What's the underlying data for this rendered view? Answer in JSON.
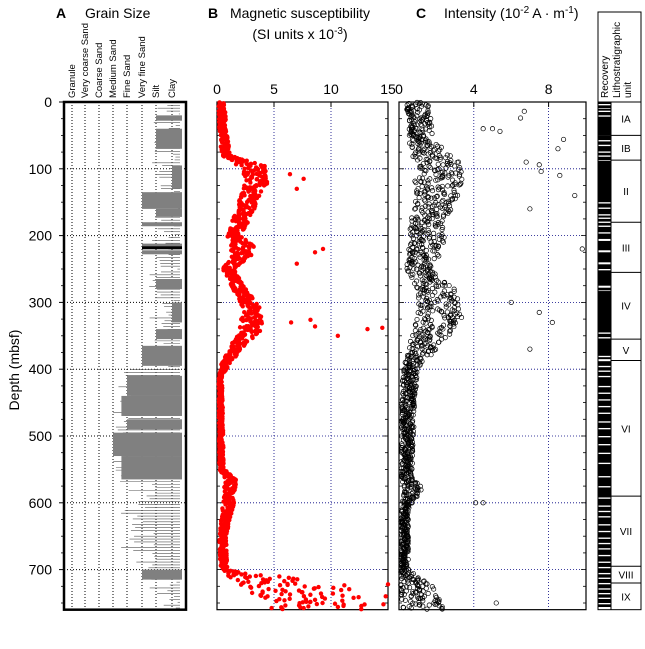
{
  "chart_data": [
    {
      "id": "A",
      "type": "bar",
      "title": "Grain Size",
      "panel_letter": "A",
      "ylabel": "Depth (mbsf)",
      "ylim": [
        0,
        760
      ],
      "yticks": [
        "0",
        "100",
        "200",
        "300",
        "400",
        "500",
        "600",
        "700"
      ],
      "grain_classes": [
        "Granule",
        "Very coarse Sand",
        "Coarse Sand",
        "Medium Sand",
        "Fine Sand",
        "Very fine Sand",
        "Silt",
        "Clay"
      ],
      "intervals_coarsest_class_index": [
        {
          "top": 20,
          "bottom": 28,
          "coarsest": 6
        },
        {
          "top": 40,
          "bottom": 70,
          "coarsest": 6
        },
        {
          "top": 95,
          "bottom": 130,
          "coarsest": 7
        },
        {
          "top": 135,
          "bottom": 160,
          "coarsest": 5
        },
        {
          "top": 160,
          "bottom": 172,
          "coarsest": 6
        },
        {
          "top": 180,
          "bottom": 186,
          "coarsest": 5
        },
        {
          "top": 212,
          "bottom": 220,
          "coarsest": 5
        },
        {
          "top": 222,
          "bottom": 228,
          "coarsest": 5
        },
        {
          "top": 265,
          "bottom": 280,
          "coarsest": 6
        },
        {
          "top": 300,
          "bottom": 330,
          "coarsest": 7
        },
        {
          "top": 340,
          "bottom": 355,
          "coarsest": 6
        },
        {
          "top": 365,
          "bottom": 395,
          "coarsest": 5
        },
        {
          "top": 410,
          "bottom": 440,
          "coarsest": 4
        },
        {
          "top": 440,
          "bottom": 470,
          "coarsest": 3.6
        },
        {
          "top": 475,
          "bottom": 490,
          "coarsest": 4
        },
        {
          "top": 495,
          "bottom": 530,
          "coarsest": 3
        },
        {
          "top": 530,
          "bottom": 565,
          "coarsest": 3.6
        },
        {
          "top": 700,
          "bottom": 715,
          "coarsest": 5
        }
      ]
    },
    {
      "id": "B",
      "type": "scatter",
      "panel_letter": "B",
      "title": "Magnetic susceptibility",
      "subtitle": "(SI units x 10",
      "subtitle_exp": "-3",
      "subtitle_end": ")",
      "xlim": [
        0,
        15
      ],
      "xticks": [
        "0",
        "5",
        "10",
        "15"
      ],
      "ylim": [
        0,
        760
      ],
      "color": "#ff0000",
      "profile": [
        {
          "depth": 0,
          "value": 0.4,
          "spread": 0.3
        },
        {
          "depth": 40,
          "value": 0.5,
          "spread": 0.3
        },
        {
          "depth": 80,
          "value": 0.8,
          "spread": 0.4
        },
        {
          "depth": 95,
          "value": 3.0,
          "spread": 1.2
        },
        {
          "depth": 120,
          "value": 3.5,
          "spread": 1.0
        },
        {
          "depth": 160,
          "value": 2.5,
          "spread": 0.8
        },
        {
          "depth": 200,
          "value": 1.5,
          "spread": 0.6
        },
        {
          "depth": 220,
          "value": 2.5,
          "spread": 1.2
        },
        {
          "depth": 250,
          "value": 1.0,
          "spread": 0.5
        },
        {
          "depth": 280,
          "value": 2.0,
          "spread": 0.6
        },
        {
          "depth": 310,
          "value": 3.0,
          "spread": 0.8
        },
        {
          "depth": 340,
          "value": 3.0,
          "spread": 1.0
        },
        {
          "depth": 360,
          "value": 2.0,
          "spread": 0.7
        },
        {
          "depth": 390,
          "value": 0.8,
          "spread": 0.4
        },
        {
          "depth": 410,
          "value": 0.3,
          "spread": 0.15
        },
        {
          "depth": 550,
          "value": 0.4,
          "spread": 0.2
        },
        {
          "depth": 565,
          "value": 1.2,
          "spread": 0.5
        },
        {
          "depth": 600,
          "value": 1.0,
          "spread": 0.5
        },
        {
          "depth": 650,
          "value": 0.5,
          "spread": 0.3
        },
        {
          "depth": 700,
          "value": 0.6,
          "spread": 0.3
        },
        {
          "depth": 725,
          "value": 7.0,
          "spread": 5.0
        },
        {
          "depth": 760,
          "value": 8.0,
          "spread": 5.5
        }
      ],
      "outliers": [
        {
          "x": 14.5,
          "y": 338
        },
        {
          "x": 13.2,
          "y": 340
        },
        {
          "x": 10.6,
          "y": 350
        },
        {
          "x": 8.6,
          "y": 336
        },
        {
          "x": 8.2,
          "y": 326
        },
        {
          "x": 6.5,
          "y": 330
        },
        {
          "x": 7.6,
          "y": 115
        },
        {
          "x": 7.0,
          "y": 130
        },
        {
          "x": 6.4,
          "y": 108
        },
        {
          "x": 9.3,
          "y": 220
        },
        {
          "x": 8.6,
          "y": 225
        },
        {
          "x": 7.0,
          "y": 242
        },
        {
          "x": 15.0,
          "y": 722
        },
        {
          "x": 14.8,
          "y": 740
        },
        {
          "x": 14.6,
          "y": 752
        }
      ]
    },
    {
      "id": "C",
      "type": "scatter",
      "panel_letter": "C",
      "title": "Intensity (10",
      "title_exp": "-2",
      "title_mid": " A · m",
      "title_exp2": "-1",
      "title_end": ")",
      "xlim": [
        0,
        10
      ],
      "xticks": [
        "0",
        "4",
        "8"
      ],
      "ylim": [
        0,
        760
      ],
      "profile": [
        {
          "depth": 0,
          "value": 1.0,
          "spread": 0.6
        },
        {
          "depth": 60,
          "value": 1.2,
          "spread": 0.7
        },
        {
          "depth": 95,
          "value": 2.2,
          "spread": 1.3
        },
        {
          "depth": 140,
          "value": 2.0,
          "spread": 1.2
        },
        {
          "depth": 180,
          "value": 1.5,
          "spread": 0.9
        },
        {
          "depth": 220,
          "value": 1.5,
          "spread": 1.0
        },
        {
          "depth": 250,
          "value": 1.0,
          "spread": 0.6
        },
        {
          "depth": 280,
          "value": 2.0,
          "spread": 1.0
        },
        {
          "depth": 320,
          "value": 2.2,
          "spread": 1.2
        },
        {
          "depth": 360,
          "value": 1.5,
          "spread": 0.9
        },
        {
          "depth": 400,
          "value": 0.6,
          "spread": 0.4
        },
        {
          "depth": 450,
          "value": 0.5,
          "spread": 0.35
        },
        {
          "depth": 560,
          "value": 0.4,
          "spread": 0.3
        },
        {
          "depth": 580,
          "value": 0.8,
          "spread": 0.5
        },
        {
          "depth": 610,
          "value": 0.3,
          "spread": 0.2
        },
        {
          "depth": 700,
          "value": 0.3,
          "spread": 0.2
        },
        {
          "depth": 730,
          "value": 1.0,
          "spread": 1.0
        },
        {
          "depth": 760,
          "value": 1.2,
          "spread": 1.2
        }
      ],
      "outliers": [
        {
          "x": 6.5,
          "y": 24
        },
        {
          "x": 6.7,
          "y": 14
        },
        {
          "x": 5.4,
          "y": 44
        },
        {
          "x": 5.0,
          "y": 40
        },
        {
          "x": 4.5,
          "y": 40
        },
        {
          "x": 8.5,
          "y": 70
        },
        {
          "x": 8.8,
          "y": 56
        },
        {
          "x": 7.5,
          "y": 94
        },
        {
          "x": 8.6,
          "y": 110
        },
        {
          "x": 9.4,
          "y": 140
        },
        {
          "x": 7.6,
          "y": 104
        },
        {
          "x": 6.8,
          "y": 90
        },
        {
          "x": 7.0,
          "y": 160
        },
        {
          "x": 9.8,
          "y": 220
        },
        {
          "x": 7.5,
          "y": 315
        },
        {
          "x": 8.2,
          "y": 330
        },
        {
          "x": 7.0,
          "y": 370
        },
        {
          "x": 6.0,
          "y": 300
        },
        {
          "x": 4.5,
          "y": 600
        },
        {
          "x": 4.1,
          "y": 600
        },
        {
          "x": 5.2,
          "y": 750
        }
      ]
    }
  ],
  "lithology": {
    "recovery_label": "Recovery",
    "unit_label": "Lithostratigraphic unit",
    "units": [
      {
        "name": "IA",
        "top": 0,
        "bottom": 50
      },
      {
        "name": "IB",
        "top": 50,
        "bottom": 87
      },
      {
        "name": "II",
        "top": 87,
        "bottom": 180
      },
      {
        "name": "III",
        "top": 180,
        "bottom": 255
      },
      {
        "name": "IV",
        "top": 255,
        "bottom": 355
      },
      {
        "name": "V",
        "top": 355,
        "bottom": 387
      },
      {
        "name": "VI",
        "top": 387,
        "bottom": 590
      },
      {
        "name": "VII",
        "top": 590,
        "bottom": 695
      },
      {
        "name": "VIII",
        "top": 695,
        "bottom": 720
      },
      {
        "name": "IX",
        "top": 720,
        "bottom": 760
      }
    ],
    "recovery_intervals": [
      [
        0,
        3
      ],
      [
        5,
        9
      ],
      [
        10,
        13
      ],
      [
        15,
        20
      ],
      [
        22,
        50
      ],
      [
        50,
        57
      ],
      [
        59,
        64
      ],
      [
        66,
        74
      ],
      [
        76,
        80
      ],
      [
        82,
        87
      ],
      [
        88,
        150
      ],
      [
        152,
        158
      ],
      [
        160,
        168
      ],
      [
        170,
        173
      ],
      [
        175,
        179
      ],
      [
        181,
        185
      ],
      [
        187,
        195
      ],
      [
        197,
        205
      ],
      [
        208,
        222
      ],
      [
        225,
        240
      ],
      [
        243,
        250
      ],
      [
        252,
        275
      ],
      [
        278,
        282
      ],
      [
        283,
        345
      ],
      [
        347,
        352
      ],
      [
        354,
        380
      ],
      [
        382,
        385
      ],
      [
        388,
        395
      ],
      [
        397,
        402
      ],
      [
        404,
        410
      ],
      [
        412,
        425
      ],
      [
        427,
        435
      ],
      [
        437,
        445
      ],
      [
        447,
        455
      ],
      [
        457,
        465
      ],
      [
        467,
        478
      ],
      [
        480,
        488
      ],
      [
        490,
        500
      ],
      [
        502,
        512
      ],
      [
        514,
        525
      ],
      [
        527,
        540
      ],
      [
        542,
        560
      ],
      [
        562,
        575
      ],
      [
        577,
        592
      ],
      [
        594,
        604
      ],
      [
        606,
        612
      ],
      [
        614,
        620
      ],
      [
        622,
        632
      ],
      [
        634,
        642
      ],
      [
        644,
        652
      ],
      [
        654,
        660
      ],
      [
        662,
        668
      ],
      [
        670,
        678
      ],
      [
        680,
        688
      ],
      [
        690,
        696
      ],
      [
        698,
        705
      ],
      [
        707,
        712
      ],
      [
        714,
        720
      ],
      [
        722,
        728
      ],
      [
        730,
        735
      ],
      [
        737,
        742
      ],
      [
        744,
        750
      ],
      [
        752,
        756
      ]
    ]
  }
}
